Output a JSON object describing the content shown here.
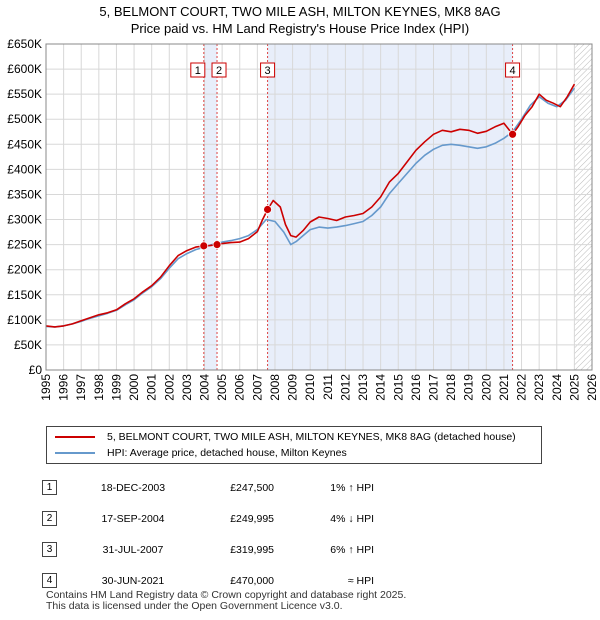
{
  "title_line1": "5, BELMONT COURT, TWO MILE ASH, MILTON KEYNES, MK8 8AG",
  "title_line2": "Price paid vs. HM Land Registry's House Price Index (HPI)",
  "chart_data": {
    "type": "line",
    "xlim": [
      1995,
      2026
    ],
    "ylim": [
      0,
      650000
    ],
    "y_ticks": [
      0,
      50000,
      100000,
      150000,
      200000,
      250000,
      300000,
      350000,
      400000,
      450000,
      500000,
      550000,
      600000,
      650000
    ],
    "y_tick_labels": [
      "£0",
      "£50K",
      "£100K",
      "£150K",
      "£200K",
      "£250K",
      "£300K",
      "£350K",
      "£400K",
      "£450K",
      "£500K",
      "£550K",
      "£600K",
      "£650K"
    ],
    "x_ticks": [
      1995,
      1996,
      1997,
      1998,
      1999,
      2000,
      2001,
      2002,
      2003,
      2004,
      2005,
      2006,
      2007,
      2008,
      2009,
      2010,
      2011,
      2012,
      2013,
      2014,
      2015,
      2016,
      2017,
      2018,
      2019,
      2020,
      2021,
      2022,
      2023,
      2024,
      2025,
      2026
    ],
    "x_tick_labels": [
      "1995",
      "1996",
      "1997",
      "1998",
      "1999",
      "2000",
      "2001",
      "2002",
      "2003",
      "2004",
      "2005",
      "2006",
      "2007",
      "2008",
      "2009",
      "2010",
      "2011",
      "2012",
      "2013",
      "2014",
      "2015",
      "2016",
      "2017",
      "2018",
      "2019",
      "2020",
      "2021",
      "2022",
      "2023",
      "2024",
      "2025",
      "2026"
    ],
    "shaded_ranges": [
      [
        2003.96,
        2004.71
      ],
      [
        2007.58,
        2021.49
      ]
    ],
    "future_hatch_from": 2025.0,
    "series": [
      {
        "name": "5, BELMONT COURT, TWO MILE ASH, MILTON KEYNES, MK8 8AG (detached house)",
        "color": "#cc0000",
        "x": [
          1995.0,
          1995.5,
          1996.0,
          1996.5,
          1997.0,
          1997.5,
          1998.0,
          1998.5,
          1999.0,
          1999.5,
          2000.0,
          2000.5,
          2001.0,
          2001.5,
          2002.0,
          2002.5,
          2003.0,
          2003.5,
          2003.96,
          2004.3,
          2004.71,
          2005.0,
          2005.5,
          2006.0,
          2006.5,
          2007.0,
          2007.3,
          2007.58,
          2007.9,
          2008.3,
          2008.6,
          2008.9,
          2009.2,
          2009.6,
          2010.0,
          2010.5,
          2011.0,
          2011.5,
          2012.0,
          2012.5,
          2013.0,
          2013.5,
          2014.0,
          2014.5,
          2015.0,
          2015.5,
          2016.0,
          2016.5,
          2017.0,
          2017.5,
          2018.0,
          2018.5,
          2019.0,
          2019.5,
          2020.0,
          2020.5,
          2021.0,
          2021.49,
          2021.8,
          2022.2,
          2022.6,
          2023.0,
          2023.4,
          2023.8,
          2024.2,
          2024.6,
          2025.0
        ],
        "y": [
          88000,
          86000,
          88000,
          92000,
          98000,
          104000,
          110000,
          114000,
          120000,
          132000,
          142000,
          156000,
          168000,
          185000,
          208000,
          228000,
          238000,
          245000,
          247500,
          248000,
          249995,
          252000,
          254000,
          255000,
          262000,
          276000,
          300000,
          319995,
          338000,
          325000,
          290000,
          268000,
          265000,
          278000,
          295000,
          305000,
          302000,
          298000,
          305000,
          308000,
          312000,
          325000,
          345000,
          375000,
          392000,
          415000,
          438000,
          455000,
          470000,
          478000,
          475000,
          480000,
          478000,
          472000,
          476000,
          485000,
          492000,
          470000,
          485000,
          508000,
          525000,
          550000,
          538000,
          532000,
          525000,
          545000,
          570000
        ]
      },
      {
        "name": "HPI: Average price, detached house, Milton Keynes",
        "color": "#6699cc",
        "x": [
          1995.0,
          1995.5,
          1996.0,
          1996.5,
          1997.0,
          1997.5,
          1998.0,
          1998.5,
          1999.0,
          1999.5,
          2000.0,
          2000.5,
          2001.0,
          2001.5,
          2002.0,
          2002.5,
          2003.0,
          2003.5,
          2004.0,
          2004.5,
          2005.0,
          2005.5,
          2006.0,
          2006.5,
          2007.0,
          2007.5,
          2008.0,
          2008.5,
          2008.9,
          2009.2,
          2009.6,
          2010.0,
          2010.5,
          2011.0,
          2011.5,
          2012.0,
          2012.5,
          2013.0,
          2013.5,
          2014.0,
          2014.5,
          2015.0,
          2015.5,
          2016.0,
          2016.5,
          2017.0,
          2017.5,
          2018.0,
          2018.5,
          2019.0,
          2019.5,
          2020.0,
          2020.5,
          2021.0,
          2021.5,
          2022.0,
          2022.5,
          2023.0,
          2023.5,
          2024.0,
          2024.5,
          2025.0
        ],
        "y": [
          87000,
          86000,
          88000,
          92000,
          97000,
          103000,
          108000,
          113000,
          119000,
          130000,
          140000,
          154000,
          166000,
          182000,
          203000,
          222000,
          232000,
          240000,
          245000,
          251000,
          255000,
          258000,
          262000,
          268000,
          280000,
          300000,
          296000,
          275000,
          250000,
          256000,
          268000,
          280000,
          285000,
          283000,
          285000,
          288000,
          292000,
          296000,
          308000,
          325000,
          352000,
          372000,
          392000,
          412000,
          428000,
          440000,
          448000,
          450000,
          448000,
          445000,
          442000,
          445000,
          452000,
          462000,
          475000,
          500000,
          528000,
          545000,
          532000,
          525000,
          538000,
          562000
        ]
      }
    ],
    "sales": [
      {
        "id": "1",
        "date": "18-DEC-2003",
        "x": 2003.96,
        "price": 247500,
        "price_label": "£247,500",
        "relation": "1% ↑ HPI"
      },
      {
        "id": "2",
        "date": "17-SEP-2004",
        "x": 2004.71,
        "price": 249995,
        "price_label": "£249,995",
        "relation": "4% ↓ HPI"
      },
      {
        "id": "3",
        "date": "31-JUL-2007",
        "x": 2007.58,
        "price": 319995,
        "price_label": "£319,995",
        "relation": "6% ↑ HPI"
      },
      {
        "id": "4",
        "date": "30-JUN-2021",
        "x": 2021.49,
        "price": 470000,
        "price_label": "£470,000",
        "relation": "≈ HPI"
      }
    ]
  },
  "legend": {
    "property_label": "5, BELMONT COURT, TWO MILE ASH, MILTON KEYNES, MK8 8AG (detached house)",
    "hpi_label": "HPI: Average price, detached house, Milton Keynes"
  },
  "colors": {
    "property": "#cc0000",
    "hpi": "#6699cc",
    "shade": "#e8eefa",
    "grid": "#d8d8d8"
  },
  "transactions": [
    {
      "num": "1",
      "date": "18-DEC-2003",
      "price": "£247,500",
      "hpi": "1% ↑ HPI"
    },
    {
      "num": "2",
      "date": "17-SEP-2004",
      "price": "£249,995",
      "hpi": "4% ↓ HPI"
    },
    {
      "num": "3",
      "date": "31-JUL-2007",
      "price": "£319,995",
      "hpi": "6% ↑ HPI"
    },
    {
      "num": "4",
      "date": "30-JUN-2021",
      "price": "£470,000",
      "hpi": "≈ HPI"
    }
  ],
  "footer_line1": "Contains HM Land Registry data © Crown copyright and database right 2025.",
  "footer_line2": "This data is licensed under the Open Government Licence v3.0."
}
